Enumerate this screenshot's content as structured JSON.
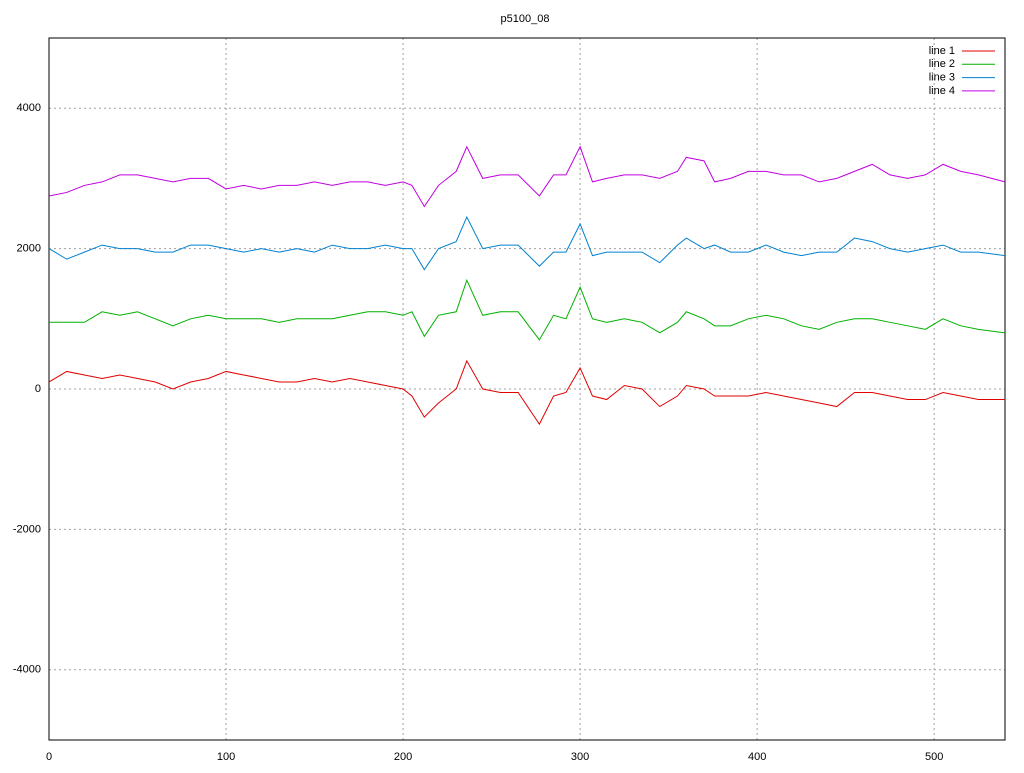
{
  "chart_data": {
    "type": "line",
    "title": "p5100_08",
    "x": [
      0,
      10,
      20,
      30,
      40,
      50,
      60,
      70,
      80,
      90,
      100,
      110,
      120,
      130,
      140,
      150,
      160,
      170,
      180,
      190,
      200,
      205,
      212,
      220,
      230,
      236,
      245,
      255,
      265,
      277,
      285,
      292,
      300,
      307,
      315,
      325,
      335,
      345,
      355,
      360,
      370,
      376,
      385,
      395,
      405,
      415,
      425,
      435,
      445,
      455,
      465,
      475,
      485,
      495,
      505,
      515,
      525,
      540
    ],
    "series": [
      {
        "name": "line 1",
        "color": "#e00000",
        "values": [
          100,
          250,
          200,
          150,
          200,
          150,
          100,
          0,
          100,
          150,
          250,
          200,
          150,
          100,
          100,
          150,
          100,
          150,
          100,
          50,
          0,
          -100,
          -400,
          -200,
          0,
          400,
          0,
          -50,
          -50,
          -500,
          -100,
          -50,
          300,
          -100,
          -150,
          50,
          0,
          -250,
          -100,
          50,
          0,
          -100,
          -100,
          -100,
          -50,
          -100,
          -150,
          -200,
          -250,
          -50,
          -50,
          -100,
          -150,
          -150,
          -50,
          -100,
          -150,
          -150
        ]
      },
      {
        "name": "line 2",
        "color": "#00b000",
        "values": [
          950,
          950,
          950,
          1100,
          1050,
          1100,
          1000,
          900,
          1000,
          1050,
          1000,
          1000,
          1000,
          950,
          1000,
          1000,
          1000,
          1050,
          1100,
          1100,
          1050,
          1100,
          750,
          1050,
          1100,
          1550,
          1050,
          1100,
          1100,
          700,
          1050,
          1000,
          1450,
          1000,
          950,
          1000,
          950,
          800,
          950,
          1100,
          1000,
          900,
          900,
          1000,
          1050,
          1000,
          900,
          850,
          950,
          1000,
          1000,
          950,
          900,
          850,
          1000,
          900,
          850,
          800
        ]
      },
      {
        "name": "line 3",
        "color": "#0080d0",
        "values": [
          2000,
          1850,
          1950,
          2050,
          2000,
          2000,
          1950,
          1950,
          2050,
          2050,
          2000,
          1950,
          2000,
          1950,
          2000,
          1950,
          2050,
          2000,
          2000,
          2050,
          2000,
          2000,
          1700,
          2000,
          2100,
          2450,
          2000,
          2050,
          2050,
          1750,
          1950,
          1950,
          2350,
          1900,
          1950,
          1950,
          1950,
          1800,
          2050,
          2150,
          2000,
          2050,
          1950,
          1950,
          2050,
          1950,
          1900,
          1950,
          1950,
          2150,
          2100,
          2000,
          1950,
          2000,
          2050,
          1950,
          1950,
          1900
        ]
      },
      {
        "name": "line 4",
        "color": "#c000e0",
        "values": [
          2750,
          2800,
          2900,
          2950,
          3050,
          3050,
          3000,
          2950,
          3000,
          3000,
          2850,
          2900,
          2850,
          2900,
          2900,
          2950,
          2900,
          2950,
          2950,
          2900,
          2950,
          2900,
          2600,
          2900,
          3100,
          3450,
          3000,
          3050,
          3050,
          2750,
          3050,
          3050,
          3450,
          2950,
          3000,
          3050,
          3050,
          3000,
          3100,
          3300,
          3250,
          2950,
          3000,
          3100,
          3100,
          3050,
          3050,
          2950,
          3000,
          3100,
          3200,
          3050,
          3000,
          3050,
          3200,
          3100,
          3050,
          2950
        ]
      }
    ],
    "xlim": [
      0,
      540
    ],
    "ylim": [
      -5000,
      5000
    ],
    "xticks": [
      0,
      100,
      200,
      300,
      400,
      500
    ],
    "yticks": [
      -4000,
      -2000,
      0,
      2000,
      4000
    ],
    "grid": true,
    "legend": "top-right"
  }
}
